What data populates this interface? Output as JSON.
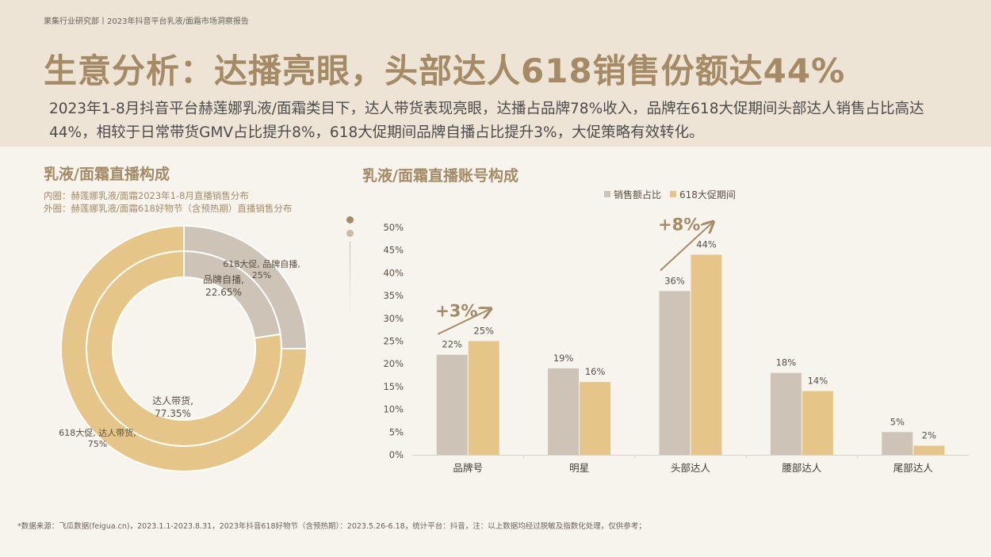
{
  "header": {
    "breadcrumb": "果集行业研究部丨2023年抖音平台乳液/面霜市场洞察报告",
    "title": "生意分析：达播亮眼，头部达人618销售份额达44%",
    "subtitle": "2023年1-8月抖音平台赫莲娜乳液/面霜类目下，达人带货表现亮眼，达播占品牌78%收入，品牌在618大促期间头部达人销售占比高达44%，相较于日常带货GMV占比提升8%，618大促期间品牌自播占比提升3%，大促策略有效转化。"
  },
  "left": {
    "title": "乳液/面霜直播构成",
    "note_inner": "内圈：赫莲娜乳液/面霜2023年1-8月直播销售分布",
    "note_outer": "外圈：赫莲娜乳液/面霜618好物节（含预热期）直播销售分布"
  },
  "right": {
    "title": "乳液/面霜直播账号构成"
  },
  "colors": {
    "gray": "#cdc3b7",
    "gold": "#e6c589",
    "accent": "#a48a65"
  },
  "chart_data": [
    {
      "type": "pie",
      "rings": [
        {
          "name": "内圈",
          "slices": [
            {
              "label": "品牌自播,",
              "label2": "22.65%",
              "value": 22.65
            },
            {
              "label": "达人带货,",
              "label2": "77.35%",
              "value": 77.35
            }
          ]
        },
        {
          "name": "外圈",
          "slices": [
            {
              "label": "618大促, 品牌自播,",
              "label2": "25%",
              "value": 25
            },
            {
              "label": "618大促, 达人带货,",
              "label2": "75%",
              "value": 75
            }
          ]
        }
      ]
    },
    {
      "type": "bar",
      "categories": [
        "品牌号",
        "明星",
        "头部达人",
        "腰部达人",
        "尾部达人"
      ],
      "series": [
        {
          "name": "销售额占比",
          "values": [
            22,
            19,
            36,
            18,
            5
          ],
          "labels": [
            "22%",
            "19%",
            "36%",
            "18%",
            "5%"
          ]
        },
        {
          "name": "618大促期间",
          "values": [
            25,
            16,
            44,
            14,
            2
          ],
          "labels": [
            "25%",
            "16%",
            "44%",
            "14%",
            "2%"
          ]
        }
      ],
      "yticks": [
        "0%",
        "5%",
        "10%",
        "15%",
        "20%",
        "25%",
        "30%",
        "35%",
        "40%",
        "45%",
        "50%"
      ],
      "ylim": [
        0,
        50
      ],
      "annotations": [
        {
          "category": "品牌号",
          "text": "+3%"
        },
        {
          "category": "头部达人",
          "text": "+8%"
        }
      ],
      "legend": "top"
    }
  ],
  "footnote": "*数据来源：飞瓜数据(feigua.cn)，2023.1.1-2023.8.31，2023年抖音618好物节（含预热期）：2023.5.26-6.18，统计平台：抖音，注：以上数据均经过脱敏及指数化处理，仅供参考；"
}
